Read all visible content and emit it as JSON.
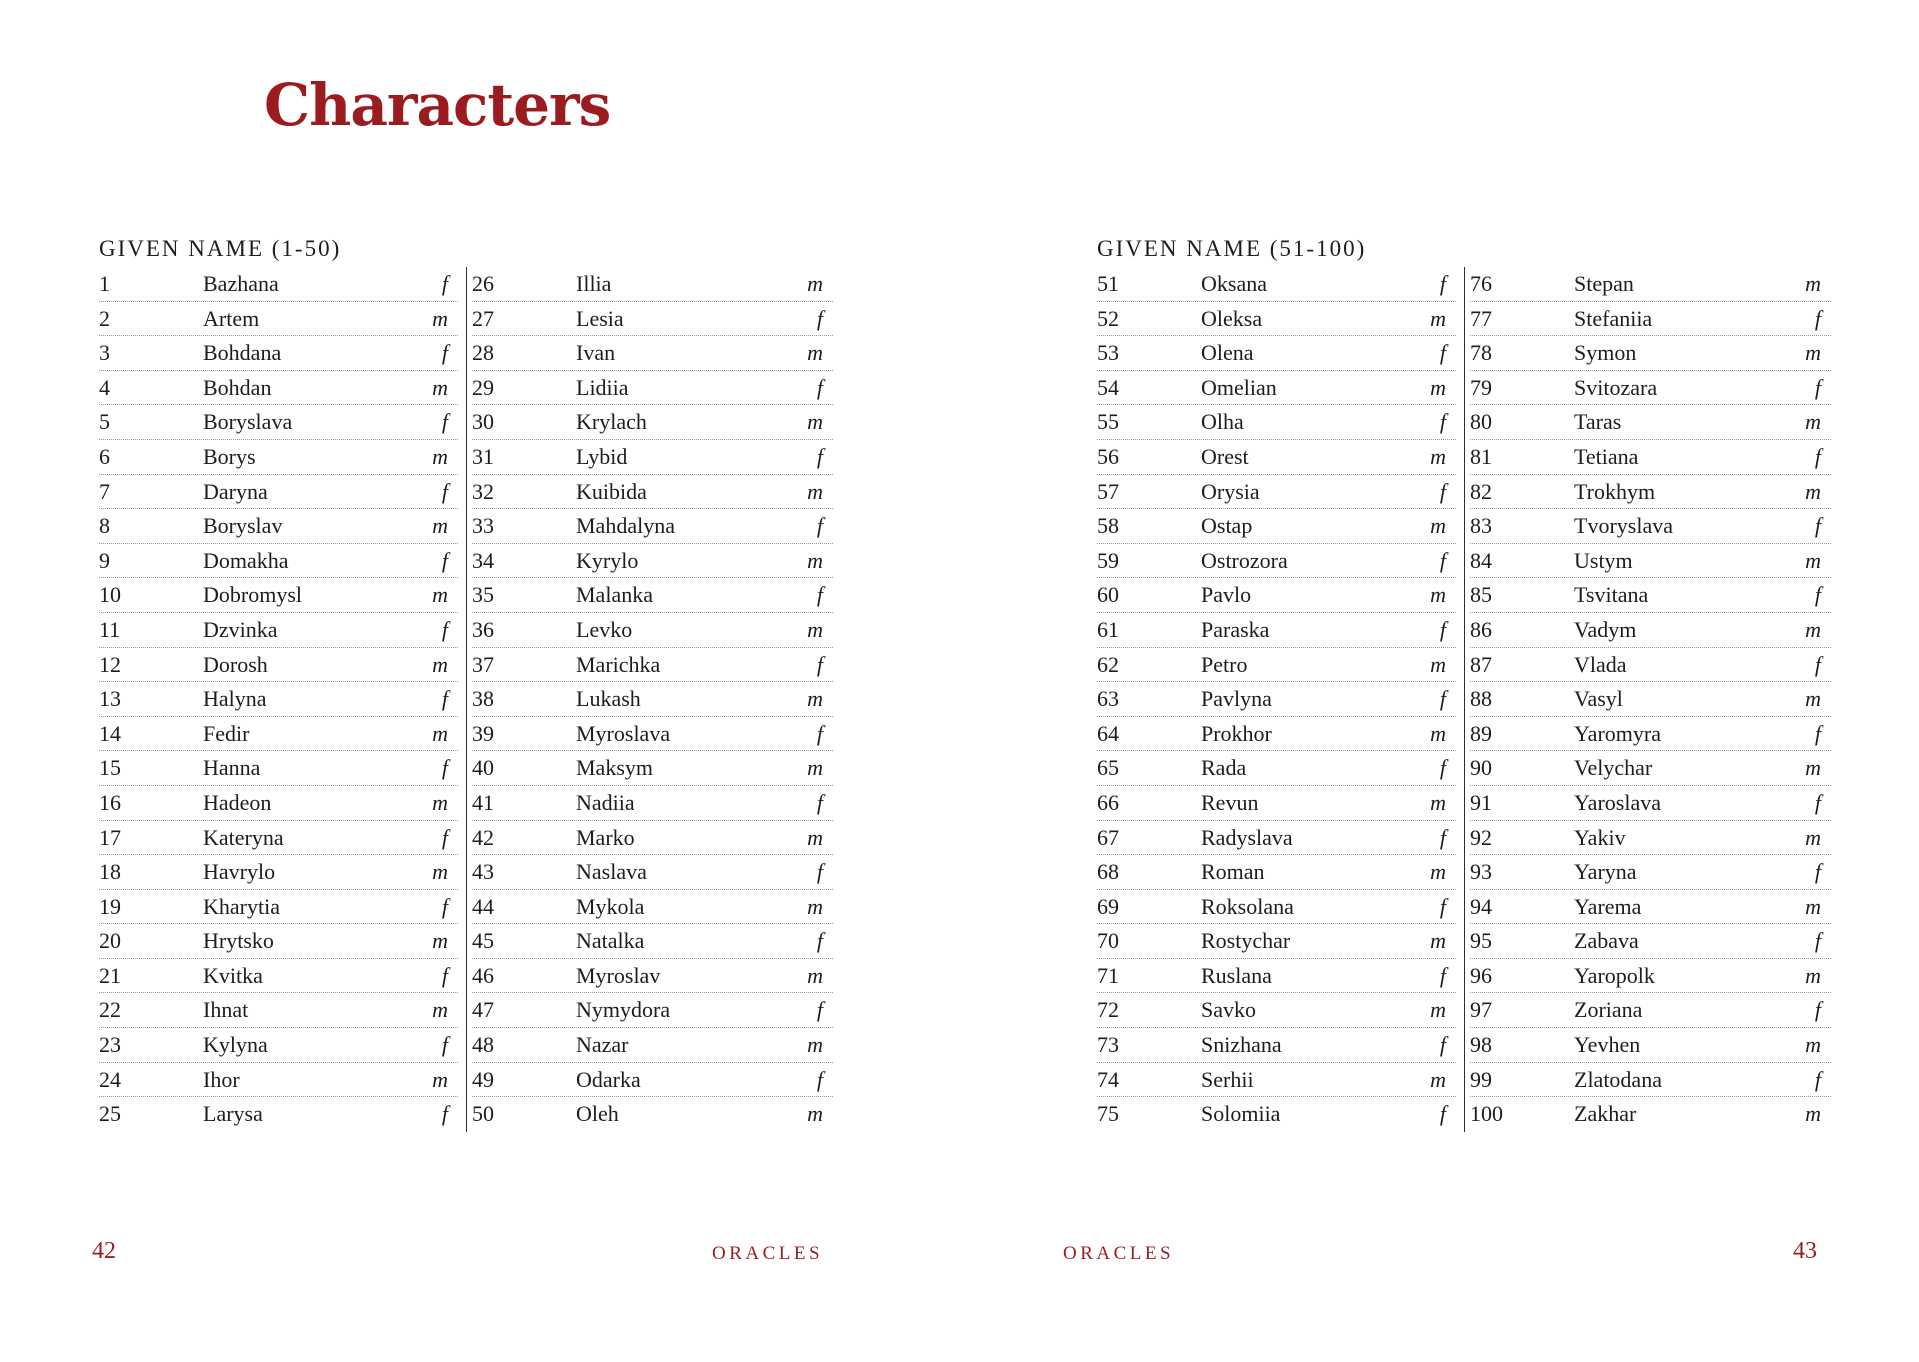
{
  "title": "Characters",
  "accent_color": "#9a1c1f",
  "text_color": "#1e1d1b",
  "pages": [
    {
      "header": "GIVEN NAME (1-50)",
      "page_number": "42",
      "running_footer": "ORACLES",
      "columns": [
        {
          "rows": [
            {
              "n": "1",
              "name": "Bazhana",
              "g": "f"
            },
            {
              "n": "2",
              "name": "Artem",
              "g": "m"
            },
            {
              "n": "3",
              "name": "Bohdana",
              "g": "f"
            },
            {
              "n": "4",
              "name": "Bohdan",
              "g": "m"
            },
            {
              "n": "5",
              "name": "Boryslava",
              "g": "f"
            },
            {
              "n": "6",
              "name": "Borys",
              "g": "m"
            },
            {
              "n": "7",
              "name": "Daryna",
              "g": "f"
            },
            {
              "n": "8",
              "name": "Boryslav",
              "g": "m"
            },
            {
              "n": "9",
              "name": "Domakha",
              "g": "f"
            },
            {
              "n": "10",
              "name": "Dobromysl",
              "g": "m"
            },
            {
              "n": "11",
              "name": "Dzvinka",
              "g": "f"
            },
            {
              "n": "12",
              "name": "Dorosh",
              "g": "m"
            },
            {
              "n": "13",
              "name": "Halyna",
              "g": "f"
            },
            {
              "n": "14",
              "name": "Fedir",
              "g": "m"
            },
            {
              "n": "15",
              "name": "Hanna",
              "g": "f"
            },
            {
              "n": "16",
              "name": "Hadeon",
              "g": "m"
            },
            {
              "n": "17",
              "name": "Kateryna",
              "g": "f"
            },
            {
              "n": "18",
              "name": "Havrylo",
              "g": "m"
            },
            {
              "n": "19",
              "name": "Kharytia",
              "g": "f"
            },
            {
              "n": "20",
              "name": "Hrytsko",
              "g": "m"
            },
            {
              "n": "21",
              "name": "Kvitka",
              "g": "f"
            },
            {
              "n": "22",
              "name": "Ihnat",
              "g": "m"
            },
            {
              "n": "23",
              "name": "Kylyna",
              "g": "f"
            },
            {
              "n": "24",
              "name": "Ihor",
              "g": "m"
            },
            {
              "n": "25",
              "name": "Larysa",
              "g": "f"
            }
          ]
        },
        {
          "rows": [
            {
              "n": "26",
              "name": "Illia",
              "g": "m"
            },
            {
              "n": "27",
              "name": "Lesia",
              "g": "f"
            },
            {
              "n": "28",
              "name": "Ivan",
              "g": "m"
            },
            {
              "n": "29",
              "name": "Lidiia",
              "g": "f"
            },
            {
              "n": "30",
              "name": "Krylach",
              "g": "m"
            },
            {
              "n": "31",
              "name": "Lybid",
              "g": "f"
            },
            {
              "n": "32",
              "name": "Kuibida",
              "g": "m"
            },
            {
              "n": "33",
              "name": "Mahdalyna",
              "g": "f"
            },
            {
              "n": "34",
              "name": "Kyrylo",
              "g": "m"
            },
            {
              "n": "35",
              "name": "Malanka",
              "g": "f"
            },
            {
              "n": "36",
              "name": "Levko",
              "g": "m"
            },
            {
              "n": "37",
              "name": "Marichka",
              "g": "f"
            },
            {
              "n": "38",
              "name": "Lukash",
              "g": "m"
            },
            {
              "n": "39",
              "name": "Myroslava",
              "g": "f"
            },
            {
              "n": "40",
              "name": "Maksym",
              "g": "m"
            },
            {
              "n": "41",
              "name": "Nadiia",
              "g": "f"
            },
            {
              "n": "42",
              "name": "Marko",
              "g": "m"
            },
            {
              "n": "43",
              "name": "Naslava",
              "g": "f"
            },
            {
              "n": "44",
              "name": "Mykola",
              "g": "m"
            },
            {
              "n": "45",
              "name": "Natalka",
              "g": "f"
            },
            {
              "n": "46",
              "name": "Myroslav",
              "g": "m"
            },
            {
              "n": "47",
              "name": "Nymydora",
              "g": "f"
            },
            {
              "n": "48",
              "name": "Nazar",
              "g": "m"
            },
            {
              "n": "49",
              "name": "Odarka",
              "g": "f"
            },
            {
              "n": "50",
              "name": "Oleh",
              "g": "m"
            }
          ]
        }
      ]
    },
    {
      "header": "GIVEN NAME (51-100)",
      "page_number": "43",
      "running_footer": "ORACLES",
      "columns": [
        {
          "rows": [
            {
              "n": "51",
              "name": "Oksana",
              "g": "f"
            },
            {
              "n": "52",
              "name": "Oleksa",
              "g": "m"
            },
            {
              "n": "53",
              "name": "Olena",
              "g": "f"
            },
            {
              "n": "54",
              "name": "Omelian",
              "g": "m"
            },
            {
              "n": "55",
              "name": "Olha",
              "g": "f"
            },
            {
              "n": "56",
              "name": "Orest",
              "g": "m"
            },
            {
              "n": "57",
              "name": "Orysia",
              "g": "f"
            },
            {
              "n": "58",
              "name": "Ostap",
              "g": "m"
            },
            {
              "n": "59",
              "name": "Ostrozora",
              "g": "f"
            },
            {
              "n": "60",
              "name": "Pavlo",
              "g": "m"
            },
            {
              "n": "61",
              "name": "Paraska",
              "g": "f"
            },
            {
              "n": "62",
              "name": "Petro",
              "g": "m"
            },
            {
              "n": "63",
              "name": "Pavlyna",
              "g": "f"
            },
            {
              "n": "64",
              "name": "Prokhor",
              "g": "m"
            },
            {
              "n": "65",
              "name": "Rada",
              "g": "f"
            },
            {
              "n": "66",
              "name": "Revun",
              "g": "m"
            },
            {
              "n": "67",
              "name": "Radyslava",
              "g": "f"
            },
            {
              "n": "68",
              "name": "Roman",
              "g": "m"
            },
            {
              "n": "69",
              "name": "Roksolana",
              "g": "f"
            },
            {
              "n": "70",
              "name": "Rostychar",
              "g": "m"
            },
            {
              "n": "71",
              "name": "Ruslana",
              "g": "f"
            },
            {
              "n": "72",
              "name": "Savko",
              "g": "m"
            },
            {
              "n": "73",
              "name": "Snizhana",
              "g": "f"
            },
            {
              "n": "74",
              "name": "Serhii",
              "g": "m"
            },
            {
              "n": "75",
              "name": "Solomiia",
              "g": "f"
            }
          ]
        },
        {
          "rows": [
            {
              "n": "76",
              "name": "Stepan",
              "g": "m"
            },
            {
              "n": "77",
              "name": "Stefaniia",
              "g": "f"
            },
            {
              "n": "78",
              "name": "Symon",
              "g": "m"
            },
            {
              "n": "79",
              "name": "Svitozara",
              "g": "f"
            },
            {
              "n": "80",
              "name": "Taras",
              "g": "m"
            },
            {
              "n": "81",
              "name": "Tetiana",
              "g": "f"
            },
            {
              "n": "82",
              "name": "Trokhym",
              "g": "m"
            },
            {
              "n": "83",
              "name": "Tvoryslava",
              "g": "f"
            },
            {
              "n": "84",
              "name": "Ustym",
              "g": "m"
            },
            {
              "n": "85",
              "name": "Tsvitana",
              "g": "f"
            },
            {
              "n": "86",
              "name": "Vadym",
              "g": "m"
            },
            {
              "n": "87",
              "name": "Vlada",
              "g": "f"
            },
            {
              "n": "88",
              "name": "Vasyl",
              "g": "m"
            },
            {
              "n": "89",
              "name": "Yaromyra",
              "g": "f"
            },
            {
              "n": "90",
              "name": "Velychar",
              "g": "m"
            },
            {
              "n": "91",
              "name": "Yaroslava",
              "g": "f"
            },
            {
              "n": "92",
              "name": "Yakiv",
              "g": "m"
            },
            {
              "n": "93",
              "name": "Yaryna",
              "g": "f"
            },
            {
              "n": "94",
              "name": "Yarema",
              "g": "m"
            },
            {
              "n": "95",
              "name": "Zabava",
              "g": "f"
            },
            {
              "n": "96",
              "name": "Yaropolk",
              "g": "m"
            },
            {
              "n": "97",
              "name": "Zoriana",
              "g": "f"
            },
            {
              "n": "98",
              "name": "Yevhen",
              "g": "m"
            },
            {
              "n": "99",
              "name": "Zlatodana",
              "g": "f"
            },
            {
              "n": "100",
              "name": "Zakhar",
              "g": "m"
            }
          ]
        }
      ]
    }
  ]
}
